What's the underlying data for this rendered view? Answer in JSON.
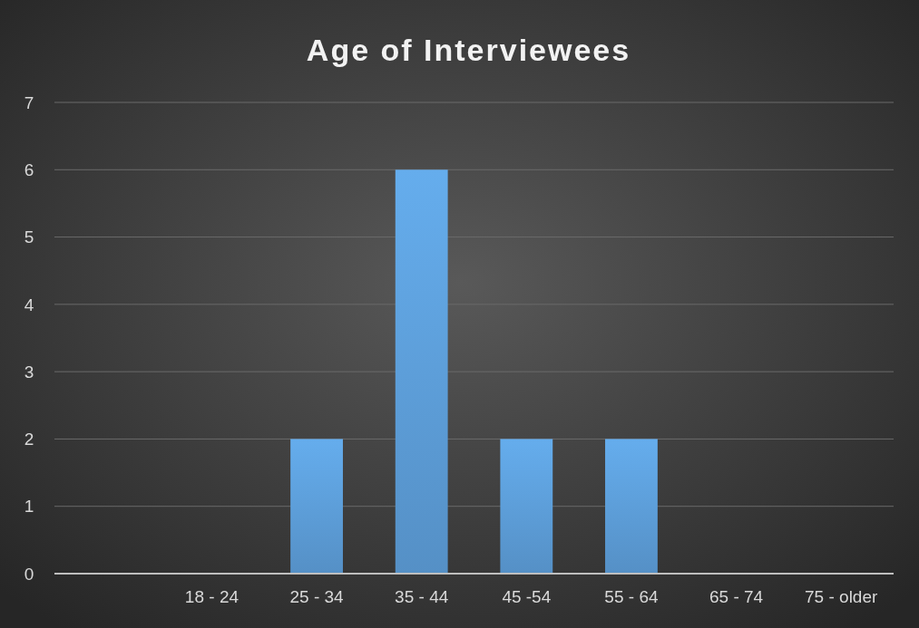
{
  "chart_data": {
    "type": "bar",
    "title": "Age of Interviewees",
    "categories": [
      null,
      "18 - 24",
      "25 - 34",
      "35 - 44",
      "45 -54",
      "55 - 64",
      "65 - 74",
      "75 - older"
    ],
    "values": [
      0,
      0,
      2,
      6,
      2,
      2,
      0,
      0
    ],
    "color": "#5b9bd5",
    "ylim": [
      0,
      7
    ],
    "yticks": [
      0,
      1,
      2,
      3,
      4,
      5,
      6,
      7
    ],
    "grid": "y"
  }
}
